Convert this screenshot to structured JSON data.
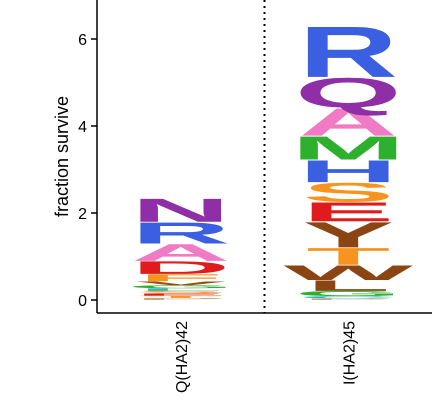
{
  "chart_data": {
    "type": "logo",
    "ylabel": "fraction survive",
    "ylim": [
      0,
      6.8
    ],
    "yticks": [
      0,
      2,
      4,
      6
    ],
    "sites": [
      {
        "label": "Q(HA2)42",
        "stack": [
          {
            "letter": "N",
            "height": 0.55,
            "color": "#8e2fa8"
          },
          {
            "letter": "R",
            "height": 0.5,
            "color": "#3a5fe0"
          },
          {
            "letter": "A",
            "height": 0.4,
            "color": "#f07ac4"
          },
          {
            "letter": "D",
            "height": 0.3,
            "color": "#e01b1b"
          },
          {
            "letter": "F",
            "height": 0.17,
            "color": "#f7941d"
          },
          {
            "letter": "V",
            "height": 0.09,
            "color": "#9b4a1a"
          },
          {
            "letter": "G",
            "height": 0.07,
            "color": "#2db02d"
          },
          {
            "letter": "L",
            "height": 0.06,
            "color": "#29b3c0"
          },
          {
            "letter": "S",
            "height": 0.06,
            "color": "#f7941d"
          },
          {
            "letter": "E",
            "height": 0.05,
            "color": "#e01b1b"
          },
          {
            "letter": "T",
            "height": 0.05,
            "color": "#f7941d"
          },
          {
            "letter": "P",
            "height": 0.05,
            "color": "#c7a67a"
          }
        ]
      },
      {
        "label": "I(HA2)45",
        "stack": [
          {
            "letter": "R",
            "height": 1.2,
            "color": "#3a5fe0"
          },
          {
            "letter": "Q",
            "height": 0.7,
            "color": "#8e2fa8"
          },
          {
            "letter": "A",
            "height": 0.65,
            "color": "#f07ac4"
          },
          {
            "letter": "M",
            "height": 0.55,
            "color": "#2db02d"
          },
          {
            "letter": "H",
            "height": 0.52,
            "color": "#3a5fe0"
          },
          {
            "letter": "S",
            "height": 0.45,
            "color": "#f7941d"
          },
          {
            "letter": "E",
            "height": 0.45,
            "color": "#e01b1b"
          },
          {
            "letter": "Y",
            "height": 0.6,
            "color": "#8b4513"
          },
          {
            "letter": "T",
            "height": 0.4,
            "color": "#f7941d"
          },
          {
            "letter": "W",
            "height": 0.35,
            "color": "#8b4513"
          },
          {
            "letter": "L",
            "height": 0.25,
            "color": "#8b4513"
          },
          {
            "letter": "G",
            "height": 0.12,
            "color": "#2db02d"
          },
          {
            "letter": "C",
            "height": 0.05,
            "color": "#29b3c0"
          },
          {
            "letter": "P",
            "height": 0.04,
            "color": "#c7a67a"
          }
        ]
      }
    ]
  }
}
